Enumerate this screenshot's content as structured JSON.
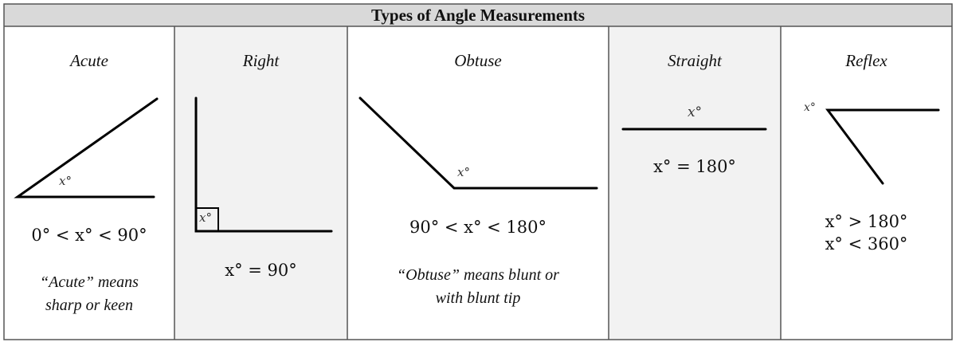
{
  "title": "Types of Angle Measurements",
  "colors": {
    "header_bg": "#d9d9d9",
    "shaded_column_bg": "#f2f2f2",
    "line": "#000000"
  },
  "angle_label": "x°",
  "columns": [
    {
      "name": "Acute",
      "range": "0° < x° < 90°",
      "note_line1": "“Acute” means",
      "note_line2": "sharp or keen"
    },
    {
      "name": "Right",
      "range": "x° = 90°"
    },
    {
      "name": "Obtuse",
      "range": "90° < x° < 180°",
      "note_line1": "“Obtuse” means blunt or",
      "note_line2": "with blunt tip"
    },
    {
      "name": "Straight",
      "range": "x° = 180°"
    },
    {
      "name": "Reflex",
      "range_line1": "x° > 180°",
      "range_line2": "x° < 360°"
    }
  ]
}
